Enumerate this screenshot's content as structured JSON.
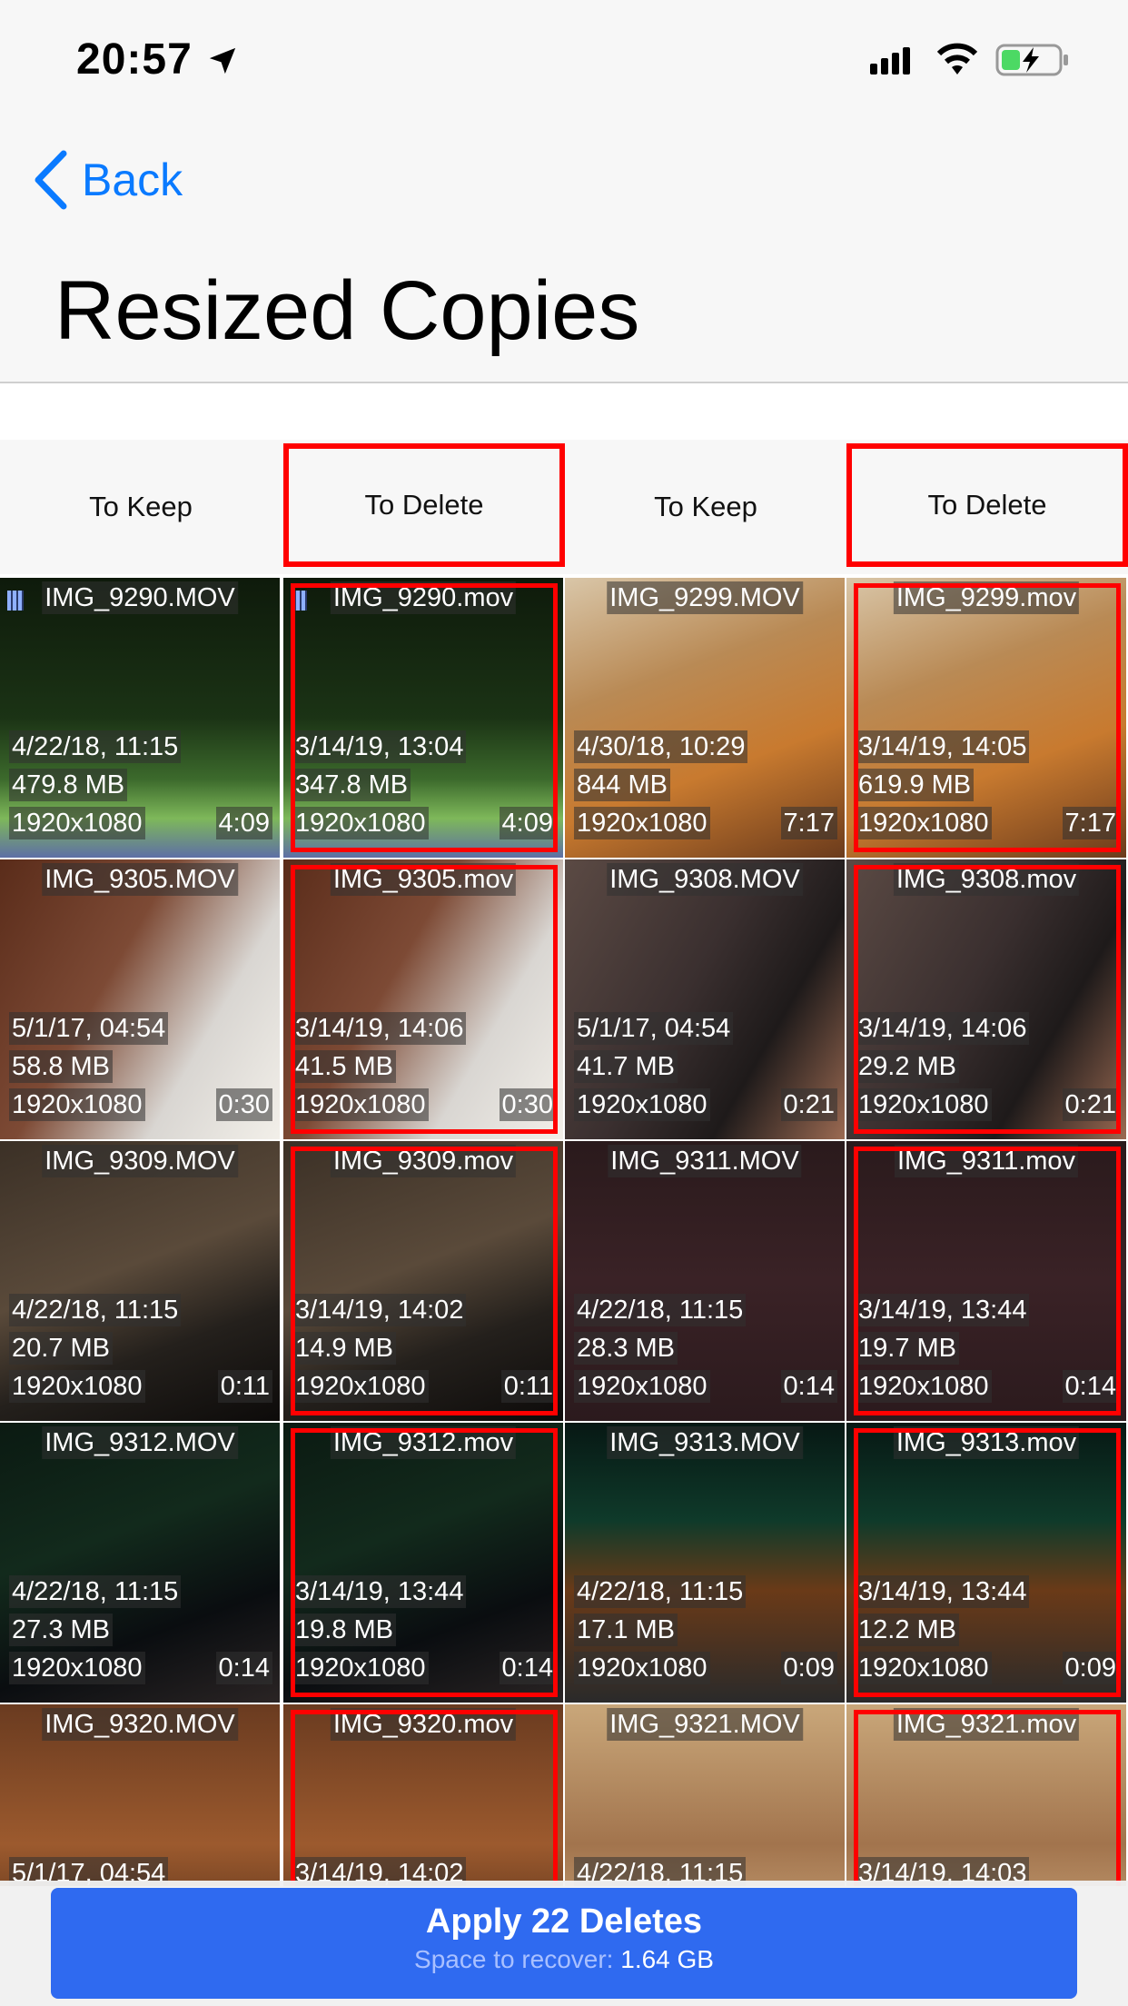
{
  "status": {
    "time": "20:57"
  },
  "nav": {
    "back_label": "Back",
    "title": "Resized Copies"
  },
  "columns": [
    "To Keep",
    "To Delete",
    "To Keep",
    "To Delete"
  ],
  "rows": [
    [
      {
        "name": "IMG_9290.MOV",
        "date": "4/22/18, 11:15",
        "size": "479.8 MB",
        "res": "1920x1080",
        "dur": "4:09",
        "theme": "golf"
      },
      {
        "name": "IMG_9290.mov",
        "date": "3/14/19, 13:04",
        "size": "347.8 MB",
        "res": "1920x1080",
        "dur": "4:09",
        "theme": "golf"
      },
      {
        "name": "IMG_9299.MOV",
        "date": "4/30/18, 10:29",
        "size": "844 MB",
        "res": "1920x1080",
        "dur": "7:17",
        "theme": "room"
      },
      {
        "name": "IMG_9299.mov",
        "date": "3/14/19, 14:05",
        "size": "619.9 MB",
        "res": "1920x1080",
        "dur": "7:17",
        "theme": "room"
      }
    ],
    [
      {
        "name": "IMG_9305.MOV",
        "date": "5/1/17, 04:54",
        "size": "58.8 MB",
        "res": "1920x1080",
        "dur": "0:30",
        "theme": "bins"
      },
      {
        "name": "IMG_9305.mov",
        "date": "3/14/19, 14:06",
        "size": "41.5 MB",
        "res": "1920x1080",
        "dur": "0:30",
        "theme": "bins"
      },
      {
        "name": "IMG_9308.MOV",
        "date": "5/1/17, 04:54",
        "size": "41.7 MB",
        "res": "1920x1080",
        "dur": "0:21",
        "theme": "selfie"
      },
      {
        "name": "IMG_9308.mov",
        "date": "3/14/19, 14:06",
        "size": "29.2 MB",
        "res": "1920x1080",
        "dur": "0:21",
        "theme": "selfie"
      }
    ],
    [
      {
        "name": "IMG_9309.MOV",
        "date": "4/22/18, 11:15",
        "size": "20.7 MB",
        "res": "1920x1080",
        "dur": "0:11",
        "theme": "street"
      },
      {
        "name": "IMG_9309.mov",
        "date": "3/14/19, 14:02",
        "size": "14.9 MB",
        "res": "1920x1080",
        "dur": "0:11",
        "theme": "street"
      },
      {
        "name": "IMG_9311.MOV",
        "date": "4/22/18, 11:15",
        "size": "28.3 MB",
        "res": "1920x1080",
        "dur": "0:14",
        "theme": "dark"
      },
      {
        "name": "IMG_9311.mov",
        "date": "3/14/19, 13:44",
        "size": "19.7 MB",
        "res": "1920x1080",
        "dur": "0:14",
        "theme": "dark"
      }
    ],
    [
      {
        "name": "IMG_9312.MOV",
        "date": "4/22/18, 11:15",
        "size": "27.3 MB",
        "res": "1920x1080",
        "dur": "0:14",
        "theme": "night"
      },
      {
        "name": "IMG_9312.mov",
        "date": "3/14/19, 13:44",
        "size": "19.8 MB",
        "res": "1920x1080",
        "dur": "0:14",
        "theme": "night"
      },
      {
        "name": "IMG_9313.MOV",
        "date": "4/22/18, 11:15",
        "size": "17.1 MB",
        "res": "1920x1080",
        "dur": "0:09",
        "theme": "mcd"
      },
      {
        "name": "IMG_9313.mov",
        "date": "3/14/19, 13:44",
        "size": "12.2 MB",
        "res": "1920x1080",
        "dur": "0:09",
        "theme": "mcd"
      }
    ],
    [
      {
        "name": "IMG_9320.MOV",
        "date": "5/1/17, 04:54",
        "size": "",
        "res": "",
        "dur": "",
        "theme": "phone"
      },
      {
        "name": "IMG_9320.mov",
        "date": "3/14/19, 14:02",
        "size": "",
        "res": "",
        "dur": "",
        "theme": "phone"
      },
      {
        "name": "IMG_9321.MOV",
        "date": "4/22/18, 11:15",
        "size": "",
        "res": "",
        "dur": "",
        "theme": "hand"
      },
      {
        "name": "IMG_9321.mov",
        "date": "3/14/19, 14:03",
        "size": "",
        "res": "",
        "dur": "",
        "theme": "hand"
      }
    ]
  ],
  "apply": {
    "label": "Apply 22 Deletes",
    "sub_prefix": "Space to recover:",
    "sub_value": "1.64 GB"
  },
  "colors": {
    "accent": "#0a7aff",
    "delete_border": "#ff0000",
    "apply_bg": "#2f6af0"
  },
  "themes": {
    "golf": {
      "bg": "linear-gradient(180deg,#0e1a0b 0%,#1b3315 50%,#3c6a2c 72%,#7eb85a 86%,#5e6fa6 100%)"
    },
    "room": {
      "bg": "linear-gradient(160deg,#d9c6a8 0%,#b98a55 35%,#c87a2f 65%,#6b3b1c 100%)"
    },
    "bins": {
      "bg": "linear-gradient(120deg,#5a2c1a 0%,#7d4a35 40%,#d9d6d2 70%,#f2efe9 100%)"
    },
    "selfie": {
      "bg": "linear-gradient(120deg,#5b4a44 0%,#3a2f2f 45%,#1e1a1a 70%,#9b6a52 100%)"
    },
    "street": {
      "bg": "linear-gradient(160deg,#3b3026 0%,#5a4a3a 45%,#24201c 70%,#0d0b0a 100%)"
    },
    "dark": {
      "bg": "linear-gradient(180deg,#2a1a1c 0%,#3a2226 50%,#2b1a1d 100%)"
    },
    "night": {
      "bg": "linear-gradient(160deg,#0b1a12 0%,#122a1c 40%,#0a0d10 70%,#2a2424 100%)"
    },
    "mcd": {
      "bg": "linear-gradient(180deg,#071814 0%,#0f3a2a 35%,#6a3a18 60%,#2a2a2a 100%)"
    },
    "phone": {
      "bg": "linear-gradient(180deg,#6a3b20 0%,#9c5a2e 50%,#3b2214 100%)"
    },
    "hand": {
      "bg": "linear-gradient(180deg,#c9a77a 0%,#a2744d 50%,#d9b88d 100%)"
    }
  }
}
